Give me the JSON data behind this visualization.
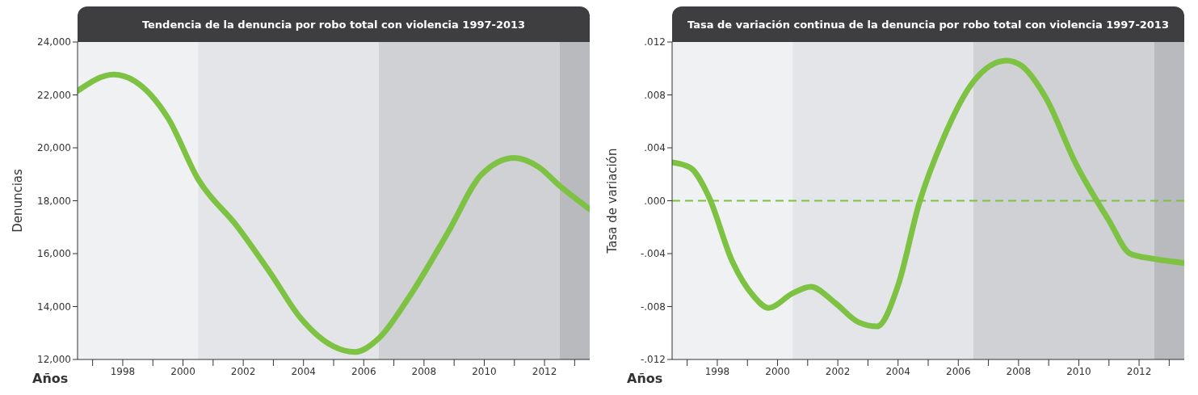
{
  "chart_data": [
    {
      "type": "line",
      "title": "Tendencia de la denuncia por robo total con violencia 1997-2013",
      "xlabel": "Años",
      "ylabel": "Denuncias",
      "color": "#7dc242",
      "x": [
        1996.5,
        1997.7,
        1998.4,
        1999.5,
        2000.5,
        2001.8,
        2002.9,
        2003.9,
        2005.0,
        2005.7,
        2006.5,
        2007.5,
        2008.8,
        2009.9,
        2011.0,
        2011.8,
        2012.5,
        2013.5
      ],
      "values": [
        22150,
        22770,
        22520,
        21130,
        18820,
        17030,
        15270,
        13570,
        12490,
        12280,
        12800,
        14350,
        16810,
        18980,
        19620,
        19280,
        18570,
        17680
      ],
      "xlim": [
        1996.5,
        2013.5
      ],
      "xticks": [
        {
          "value": 1997,
          "label": null
        },
        1998,
        {
          "value": 1999,
          "label": null
        },
        2000,
        {
          "value": 2001,
          "label": null
        },
        2002,
        {
          "value": 2003,
          "label": null
        },
        2004,
        {
          "value": 2005,
          "label": null
        },
        2006,
        {
          "value": 2007,
          "label": null
        },
        2008,
        {
          "value": 2009,
          "label": null
        },
        2010,
        {
          "value": 2011,
          "label": null
        },
        2012,
        {
          "value": 2013,
          "label": null
        }
      ],
      "ylim": [
        12000,
        24000
      ],
      "yticks": [
        {
          "value": 12000,
          "label": "12,000"
        },
        {
          "value": 14000,
          "label": "14,000"
        },
        {
          "value": 16000,
          "label": "16,000"
        },
        {
          "value": 18000,
          "label": "18,000"
        },
        {
          "value": 20000,
          "label": "20,000"
        },
        {
          "value": 22000,
          "label": "22,000"
        },
        {
          "value": 24000,
          "label": "24,000"
        }
      ],
      "bands": [
        {
          "axis": "x",
          "from": 1996.5,
          "to": 2000.5,
          "color": "#f0f1f3"
        },
        {
          "axis": "x",
          "from": 2000.5,
          "to": 2006.5,
          "color": "#e4e5e8"
        },
        {
          "axis": "x",
          "from": 2006.5,
          "to": 2012.5,
          "color": "#d0d1d4"
        },
        {
          "axis": "x",
          "from": 2012.5,
          "to": 2013.5,
          "color": "#b9babd"
        }
      ]
    },
    {
      "type": "line",
      "title": "Tasa de variación continua de la denuncia por robo total con violencia 1997-2013",
      "xlabel": "Años",
      "ylabel": "Tasa de variación",
      "color": "#7dc242",
      "x": [
        1996.5,
        1997.1,
        1997.7,
        1998.5,
        1999.2,
        1999.7,
        2000.5,
        2001.1,
        2001.9,
        2002.7,
        2003.3,
        2004.0,
        2004.7,
        2005.5,
        2006.5,
        2007.6,
        2008.1,
        2008.9,
        2009.9,
        2011.0,
        2011.7,
        2012.5,
        2013.5
      ],
      "values": [
        0.0029,
        0.0025,
        0.0004,
        -0.0046,
        -0.0072,
        -0.0081,
        -0.007,
        -0.0065,
        -0.0077,
        -0.0092,
        -0.0095,
        -0.0064,
        -0.0002,
        0.0047,
        0.009,
        0.0106,
        0.0102,
        0.0078,
        0.0028,
        -0.0015,
        -0.004,
        -0.0044,
        -0.0047
      ],
      "xlim": [
        1996.5,
        2013.5
      ],
      "xticks": [
        {
          "value": 1997,
          "label": null
        },
        1998,
        {
          "value": 1999,
          "label": null
        },
        2000,
        {
          "value": 2001,
          "label": null
        },
        2002,
        {
          "value": 2003,
          "label": null
        },
        2004,
        {
          "value": 2005,
          "label": null
        },
        2006,
        {
          "value": 2007,
          "label": null
        },
        2008,
        {
          "value": 2009,
          "label": null
        },
        2010,
        {
          "value": 2011,
          "label": null
        },
        2012,
        {
          "value": 2013,
          "label": null
        }
      ],
      "ylim": [
        -0.012,
        0.012
      ],
      "yticks": [
        {
          "value": -0.012,
          "label": "-.012"
        },
        {
          "value": -0.008,
          "label": "-.008"
        },
        {
          "value": -0.004,
          "label": "-.004"
        },
        {
          "value": 0,
          "label": ".000"
        },
        {
          "value": 0.004,
          "label": ".004"
        },
        {
          "value": 0.008,
          "label": ".008"
        },
        {
          "value": 0.012,
          "label": ".012"
        }
      ],
      "ref_lines": [
        {
          "axis": "y",
          "value": 0,
          "color": "#7dc242",
          "line_style": "dashed"
        }
      ],
      "bands": [
        {
          "axis": "x",
          "from": 1996.5,
          "to": 2000.5,
          "color": "#f0f1f3"
        },
        {
          "axis": "x",
          "from": 2000.5,
          "to": 2006.5,
          "color": "#e4e5e8"
        },
        {
          "axis": "x",
          "from": 2006.5,
          "to": 2012.5,
          "color": "#d0d1d4"
        },
        {
          "axis": "x",
          "from": 2012.5,
          "to": 2013.5,
          "color": "#b9babd"
        }
      ]
    }
  ]
}
